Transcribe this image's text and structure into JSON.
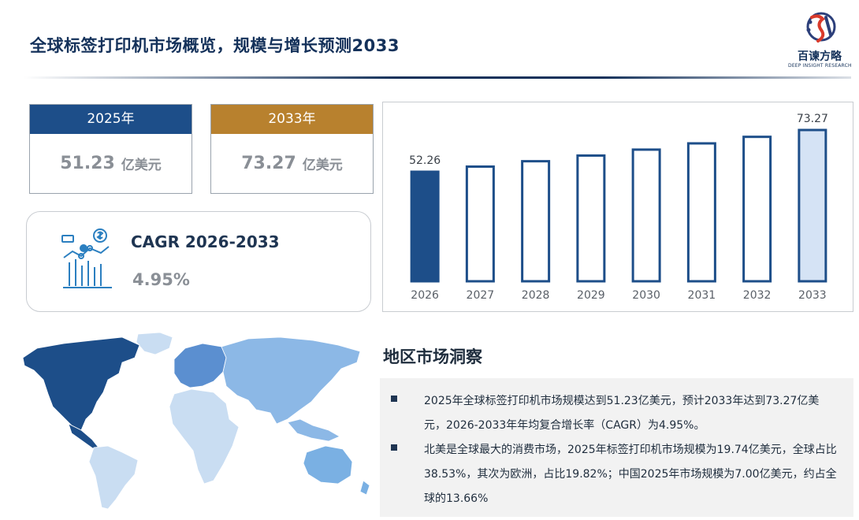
{
  "header": {
    "title": "全球标签打印机市场概览，规模与增长预测2033",
    "logo_name": "百谏方略",
    "logo_subtitle": "DEEP INSIGHT RESEARCH"
  },
  "stats": [
    {
      "year": "2025年",
      "value": "51.23",
      "unit": "亿美元",
      "color": "#1d4e89"
    },
    {
      "year": "2033年",
      "value": "73.27",
      "unit": "亿美元",
      "color": "#b8812e"
    }
  ],
  "cagr": {
    "label": "CAGR 2026-2033",
    "value": "4.95%"
  },
  "chart_data": {
    "type": "bar",
    "categories": [
      "2026",
      "2027",
      "2028",
      "2029",
      "2030",
      "2031",
      "2032",
      "2033"
    ],
    "values": [
      52.26,
      54.85,
      57.56,
      60.41,
      63.4,
      66.54,
      69.83,
      73.27
    ],
    "labels": [
      "52.26",
      "",
      "",
      "",
      "",
      "",
      "",
      "73.27"
    ],
    "ylim": [
      0,
      80
    ],
    "grid": false,
    "colors": {
      "first": "#1d4e89",
      "middle": "#ffffff",
      "last": "#d5e3f5",
      "stroke": "#1d4e89"
    }
  },
  "regional": {
    "title": "地区市场洞察",
    "bullets": [
      "2025年全球标签打印机市场规模达到51.23亿美元，预计2033年达到73.27亿美元，2026-2033年年均复合增长率（CAGR）为4.95%。",
      "北美是全球最大的消费市场，2025年标签打印机市场规模为19.74亿美元，全球占比38.53%，其次为欧洲，占比19.82%；中国2025年市场规模为7.00亿美元，约占全球的13.66%"
    ]
  },
  "map_colors": {
    "north_america": "#1d4e89",
    "europe": "#5b8fd0",
    "asia": "#8cb8e6",
    "south_america": "#c9ddf2",
    "africa": "#c9ddf2",
    "oceania": "#7ab0e3",
    "greenland": "#c9ddf2"
  }
}
